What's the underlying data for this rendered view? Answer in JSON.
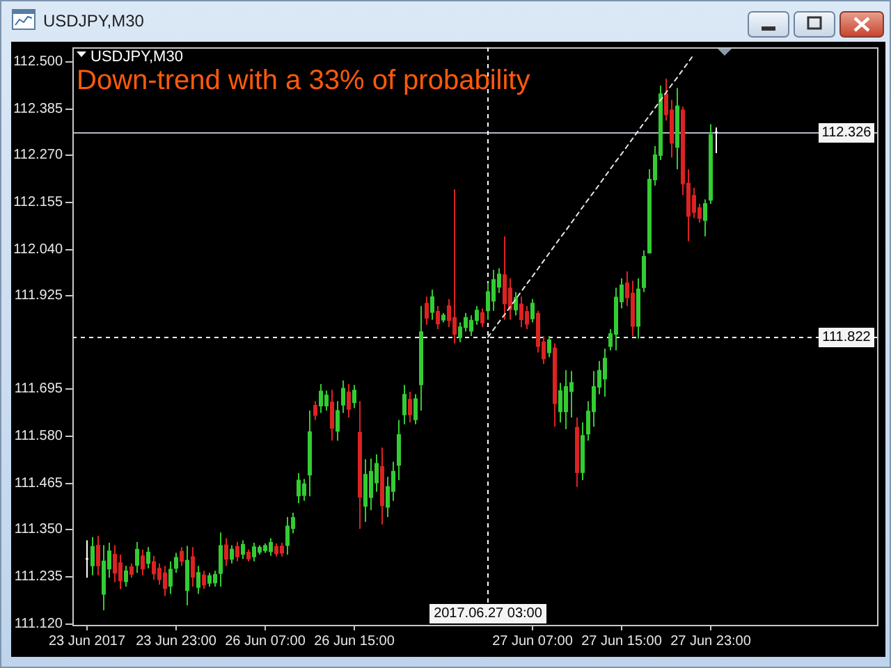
{
  "chart_data": {
    "type": "candlestick",
    "title": "USDJPY,M30",
    "annotations": [
      "USDJPY,M30",
      "Down-trend with a 33% of probability"
    ],
    "categories": [
      "23 Jun 2017",
      null,
      null,
      null,
      null,
      null,
      null,
      null,
      null,
      null,
      null,
      null,
      null,
      null,
      null,
      null,
      "23 Jun 23:00",
      null,
      null,
      null,
      null,
      null,
      null,
      null,
      null,
      null,
      null,
      null,
      null,
      null,
      null,
      null,
      "26 Jun 07:00",
      null,
      null,
      null,
      null,
      null,
      null,
      null,
      null,
      null,
      null,
      null,
      null,
      null,
      null,
      null,
      "26 Jun 15:00",
      null,
      null,
      null,
      null,
      null,
      null,
      null,
      null,
      null,
      null,
      null,
      null,
      null,
      null,
      null,
      null,
      null,
      null,
      null,
      null,
      null,
      null,
      null,
      "2017.06.27 03:00",
      null,
      null,
      null,
      null,
      null,
      null,
      null,
      "27 Jun 07:00",
      null,
      null,
      null,
      null,
      null,
      null,
      null,
      null,
      null,
      null,
      null,
      null,
      null,
      null,
      null,
      "27 Jun 15:00",
      null,
      null,
      null,
      null,
      null,
      null,
      null,
      null,
      null,
      null,
      null,
      null,
      null,
      null,
      null,
      "27 Jun 23:00",
      null
    ],
    "series": [
      {
        "ohlc": [
          [
            111.277,
            111.323,
            111.231,
            111.277
          ],
          [
            111.261,
            111.331,
            111.237,
            111.307
          ],
          [
            111.31,
            111.334,
            111.237,
            111.261
          ],
          [
            111.191,
            111.311,
            111.151,
            111.271
          ],
          [
            111.253,
            111.317,
            111.231,
            111.296
          ],
          [
            111.288,
            111.311,
            111.22,
            111.243
          ],
          [
            111.267,
            111.288,
            111.203,
            111.224
          ],
          [
            111.222,
            111.26,
            111.209,
            111.247
          ],
          [
            111.257,
            111.266,
            111.231,
            111.24
          ],
          [
            111.262,
            111.319,
            111.243,
            111.3
          ],
          [
            111.284,
            111.3,
            111.237,
            111.253
          ],
          [
            111.267,
            111.306,
            111.254,
            111.293
          ],
          [
            111.27,
            111.285,
            111.226,
            111.241
          ],
          [
            111.253,
            111.266,
            111.214,
            111.227
          ],
          [
            111.242,
            111.26,
            111.186,
            111.205
          ],
          [
            111.211,
            111.271,
            111.191,
            111.251
          ],
          [
            111.255,
            111.292,
            111.243,
            111.28
          ],
          [
            111.295,
            111.306,
            111.26,
            111.272
          ],
          [
            111.2,
            111.309,
            111.163,
            111.273
          ],
          [
            111.282,
            111.306,
            111.209,
            111.233
          ],
          [
            111.208,
            111.26,
            111.191,
            111.243
          ],
          [
            111.237,
            111.248,
            111.203,
            111.214
          ],
          [
            111.218,
            111.243,
            111.209,
            111.235
          ],
          [
            111.219,
            111.248,
            111.209,
            111.238
          ],
          [
            111.242,
            111.342,
            111.209,
            111.309
          ],
          [
            111.311,
            111.328,
            111.26,
            111.277
          ],
          [
            111.277,
            111.311,
            111.266,
            111.3
          ],
          [
            111.307,
            111.319,
            111.271,
            111.283
          ],
          [
            111.289,
            111.323,
            111.277,
            111.312
          ],
          [
            111.293,
            111.3,
            111.271,
            111.278
          ],
          [
            111.283,
            111.317,
            111.271,
            111.306
          ],
          [
            111.294,
            111.311,
            111.288,
            111.305
          ],
          [
            111.298,
            111.315,
            111.292,
            111.309
          ],
          [
            111.296,
            111.328,
            111.285,
            111.317
          ],
          [
            111.307,
            111.315,
            111.283,
            111.291
          ],
          [
            111.308,
            111.317,
            111.283,
            111.292
          ],
          [
            111.311,
            111.38,
            111.288,
            111.357
          ],
          [
            111.353,
            111.391,
            111.34,
            111.378
          ],
          [
            111.433,
            111.488,
            111.414,
            111.47
          ],
          [
            111.434,
            111.474,
            111.42,
            111.461
          ],
          [
            111.484,
            111.642,
            111.431,
            111.589
          ],
          [
            111.654,
            111.665,
            111.619,
            111.631
          ],
          [
            111.654,
            111.707,
            111.636,
            111.689
          ],
          [
            111.654,
            111.691,
            111.642,
            111.679
          ],
          [
            111.662,
            111.693,
            111.568,
            111.599
          ],
          [
            111.592,
            111.665,
            111.568,
            111.641
          ],
          [
            111.656,
            111.716,
            111.636,
            111.696
          ],
          [
            111.687,
            111.707,
            111.625,
            111.646
          ],
          [
            111.662,
            111.705,
            111.648,
            111.691
          ],
          [
            111.587,
            111.665,
            111.351,
            111.43
          ],
          [
            111.407,
            111.522,
            111.368,
            111.484
          ],
          [
            111.429,
            111.524,
            111.397,
            111.492
          ],
          [
            111.465,
            111.534,
            111.442,
            111.511
          ],
          [
            111.504,
            111.551,
            111.362,
            111.409
          ],
          [
            111.405,
            111.479,
            111.38,
            111.454
          ],
          [
            111.444,
            111.516,
            111.42,
            111.492
          ],
          [
            111.508,
            111.619,
            111.471,
            111.582
          ],
          [
            111.632,
            111.705,
            111.608,
            111.681
          ],
          [
            111.669,
            111.688,
            111.613,
            111.632
          ],
          [
            111.62,
            111.682,
            111.608,
            111.67
          ],
          [
            111.706,
            111.899,
            111.642,
            111.835
          ],
          [
            111.905,
            111.922,
            111.853,
            111.87
          ],
          [
            111.884,
            111.939,
            111.865,
            111.921
          ],
          [
            111.885,
            111.899,
            111.842,
            111.856
          ],
          [
            111.865,
            111.882,
            111.859,
            111.876
          ],
          [
            111.899,
            111.916,
            111.847,
            111.864
          ],
          [
            111.87,
            112.186,
            111.807,
            111.83
          ],
          [
            111.822,
            111.859,
            111.81,
            111.847
          ],
          [
            111.847,
            111.882,
            111.836,
            111.87
          ],
          [
            111.838,
            111.876,
            111.825,
            111.863
          ],
          [
            111.864,
            111.899,
            111.853,
            111.888
          ],
          [
            111.882,
            111.893,
            111.847,
            111.858
          ],
          [
            111.888,
            111.956,
            111.865,
            111.933
          ],
          [
            111.912,
            111.988,
            111.887,
            111.963
          ],
          [
            111.946,
            111.992,
            111.931,
            111.977
          ],
          [
            111.975,
            112.07,
            111.865,
            111.905
          ],
          [
            111.942,
            111.967,
            111.865,
            111.891
          ],
          [
            111.89,
            111.933,
            111.876,
            111.919
          ],
          [
            111.903,
            111.922,
            111.847,
            111.866
          ],
          [
            111.885,
            111.899,
            111.842,
            111.855
          ],
          [
            111.868,
            111.916,
            111.859,
            111.905
          ],
          [
            111.88,
            111.887,
            111.785,
            111.8
          ],
          [
            111.81,
            111.825,
            111.756,
            111.77
          ],
          [
            111.785,
            111.825,
            111.773,
            111.815
          ],
          [
            111.795,
            111.807,
            111.602,
            111.66
          ],
          [
            111.64,
            111.71,
            111.613,
            111.69
          ],
          [
            111.64,
            111.741,
            111.596,
            111.7
          ],
          [
            111.69,
            111.739,
            111.625,
            111.71
          ],
          [
            111.6,
            111.625,
            111.454,
            111.49
          ],
          [
            111.49,
            111.613,
            111.471,
            111.58
          ],
          [
            111.585,
            111.665,
            111.568,
            111.64
          ],
          [
            111.64,
            111.739,
            111.602,
            111.7
          ],
          [
            111.7,
            111.764,
            111.682,
            111.74
          ],
          [
            111.72,
            111.794,
            111.676,
            111.77
          ],
          [
            111.8,
            111.842,
            111.79,
            111.83
          ],
          [
            111.83,
            111.944,
            111.79,
            111.92
          ],
          [
            111.91,
            111.967,
            111.893,
            111.95
          ],
          [
            111.955,
            111.984,
            111.899,
            111.92
          ],
          [
            111.93,
            111.961,
            111.825,
            111.85
          ],
          [
            111.85,
            111.967,
            111.819,
            111.94
          ],
          [
            111.945,
            112.036,
            111.933,
            112.02
          ],
          [
            112.03,
            112.235,
            112.03,
            112.21
          ],
          [
            112.21,
            112.292,
            112.195,
            112.27
          ],
          [
            112.27,
            112.441,
            112.258,
            112.42
          ],
          [
            112.42,
            112.458,
            112.355,
            112.37
          ],
          [
            112.38,
            112.406,
            112.264,
            112.3
          ],
          [
            112.29,
            112.435,
            112.235,
            112.39
          ],
          [
            112.38,
            112.389,
            112.172,
            112.2
          ],
          [
            112.2,
            112.235,
            112.058,
            112.12
          ],
          [
            112.17,
            112.19,
            112.115,
            112.13
          ],
          [
            112.14,
            112.15,
            112.104,
            112.115
          ],
          [
            112.11,
            112.161,
            112.07,
            112.15
          ],
          [
            112.16,
            112.346,
            112.15,
            112.32
          ],
          [
            112.326,
            112.338,
            112.275,
            112.326
          ]
        ],
        "colors": [
          "#ffffff",
          "#33cc33",
          "#dd2222",
          "#33cc33",
          "#33cc33",
          "#dd2222",
          "#dd2222",
          "#33cc33",
          "#dd2222",
          "#33cc33",
          "#dd2222",
          "#33cc33",
          "#dd2222",
          "#dd2222",
          "#dd2222",
          "#33cc33",
          "#33cc33",
          "#dd2222",
          "#33cc33",
          "#dd2222",
          "#33cc33",
          "#dd2222",
          "#33cc33",
          "#33cc33",
          "#33cc33",
          "#dd2222",
          "#33cc33",
          "#dd2222",
          "#33cc33",
          "#dd2222",
          "#33cc33",
          "#33cc33",
          "#33cc33",
          "#33cc33",
          "#dd2222",
          "#dd2222",
          "#33cc33",
          "#33cc33",
          "#33cc33",
          "#33cc33",
          "#33cc33",
          "#dd2222",
          "#33cc33",
          "#33cc33",
          "#dd2222",
          "#33cc33",
          "#33cc33",
          "#dd2222",
          "#33cc33",
          "#dd2222",
          "#33cc33",
          "#33cc33",
          "#33cc33",
          "#dd2222",
          "#33cc33",
          "#33cc33",
          "#33cc33",
          "#33cc33",
          "#dd2222",
          "#33cc33",
          "#33cc33",
          "#dd2222",
          "#33cc33",
          "#dd2222",
          "#33cc33",
          "#dd2222",
          "#dd2222",
          "#33cc33",
          "#33cc33",
          "#33cc33",
          "#33cc33",
          "#dd2222",
          "#33cc33",
          "#33cc33",
          "#33cc33",
          "#dd2222",
          "#dd2222",
          "#33cc33",
          "#dd2222",
          "#dd2222",
          "#33cc33",
          "#dd2222",
          "#dd2222",
          "#33cc33",
          "#dd2222",
          "#33cc33",
          "#33cc33",
          "#33cc33",
          "#dd2222",
          "#33cc33",
          "#33cc33",
          "#33cc33",
          "#33cc33",
          "#33cc33",
          "#33cc33",
          "#33cc33",
          "#33cc33",
          "#dd2222",
          "#dd2222",
          "#33cc33",
          "#33cc33",
          "#33cc33",
          "#33cc33",
          "#33cc33",
          "#dd2222",
          "#dd2222",
          "#33cc33",
          "#dd2222",
          "#dd2222",
          "#dd2222",
          "#dd2222",
          "#33cc33",
          "#33cc33",
          "#ffffff"
        ]
      },
      {
        "type": "line",
        "color": "#e6e6e6",
        "line_style": "dashed",
        "values": [
          null,
          null,
          null,
          null,
          null,
          null,
          null,
          null,
          null,
          null,
          null,
          null,
          null,
          null,
          null,
          null,
          null,
          null,
          null,
          null,
          null,
          null,
          null,
          null,
          null,
          null,
          null,
          null,
          null,
          null,
          null,
          null,
          null,
          null,
          null,
          null,
          null,
          null,
          null,
          null,
          null,
          null,
          null,
          null,
          null,
          null,
          null,
          null,
          null,
          null,
          null,
          null,
          null,
          null,
          null,
          null,
          null,
          null,
          null,
          null,
          null,
          null,
          null,
          null,
          null,
          null,
          null,
          null,
          null,
          null,
          null,
          null,
          111.822,
          111.841,
          111.86,
          111.878,
          111.897,
          111.916,
          111.935,
          111.954,
          111.972,
          111.991,
          112.01,
          112.029,
          112.048,
          112.067,
          112.085,
          112.104,
          112.123,
          112.142,
          112.161,
          112.179,
          112.198,
          112.217,
          112.236,
          112.255,
          112.273,
          112.292,
          112.311,
          112.33,
          112.349,
          112.367,
          112.386,
          112.405,
          112.424,
          112.443,
          112.461,
          112.48,
          112.499,
          112.518,
          null,
          null,
          null,
          null
        ]
      }
    ],
    "ylim": [
      111.115,
      112.535
    ],
    "yticks": [
      {
        "value": 112.5,
        "label": "112.500"
      },
      {
        "value": 112.385,
        "label": "112.385"
      },
      {
        "value": 112.27,
        "label": "112.270"
      },
      {
        "value": 112.155,
        "label": "112.155"
      },
      {
        "value": 112.04,
        "label": "112.040"
      },
      {
        "value": 111.925,
        "label": "111.925"
      },
      {
        "value": 111.695,
        "label": "111.695"
      },
      {
        "value": 111.58,
        "label": "111.580"
      },
      {
        "value": 111.465,
        "label": "111.465"
      },
      {
        "value": 111.35,
        "label": "111.350"
      },
      {
        "value": 111.235,
        "label": "111.235"
      },
      {
        "value": 111.12,
        "label": "111.120"
      }
    ],
    "ref_lines": [
      {
        "axis": "y",
        "value": 112.326,
        "label": "112.326",
        "color": "#b4b8c8",
        "line_style": "solid"
      },
      {
        "axis": "y",
        "value": 111.822,
        "label": "111.822",
        "color": "#ffffff",
        "line_style": "dashed"
      },
      {
        "axis": "x",
        "value": "2017.06.27 03:00",
        "color": "#ffffff",
        "line_style": "dashed"
      }
    ]
  }
}
